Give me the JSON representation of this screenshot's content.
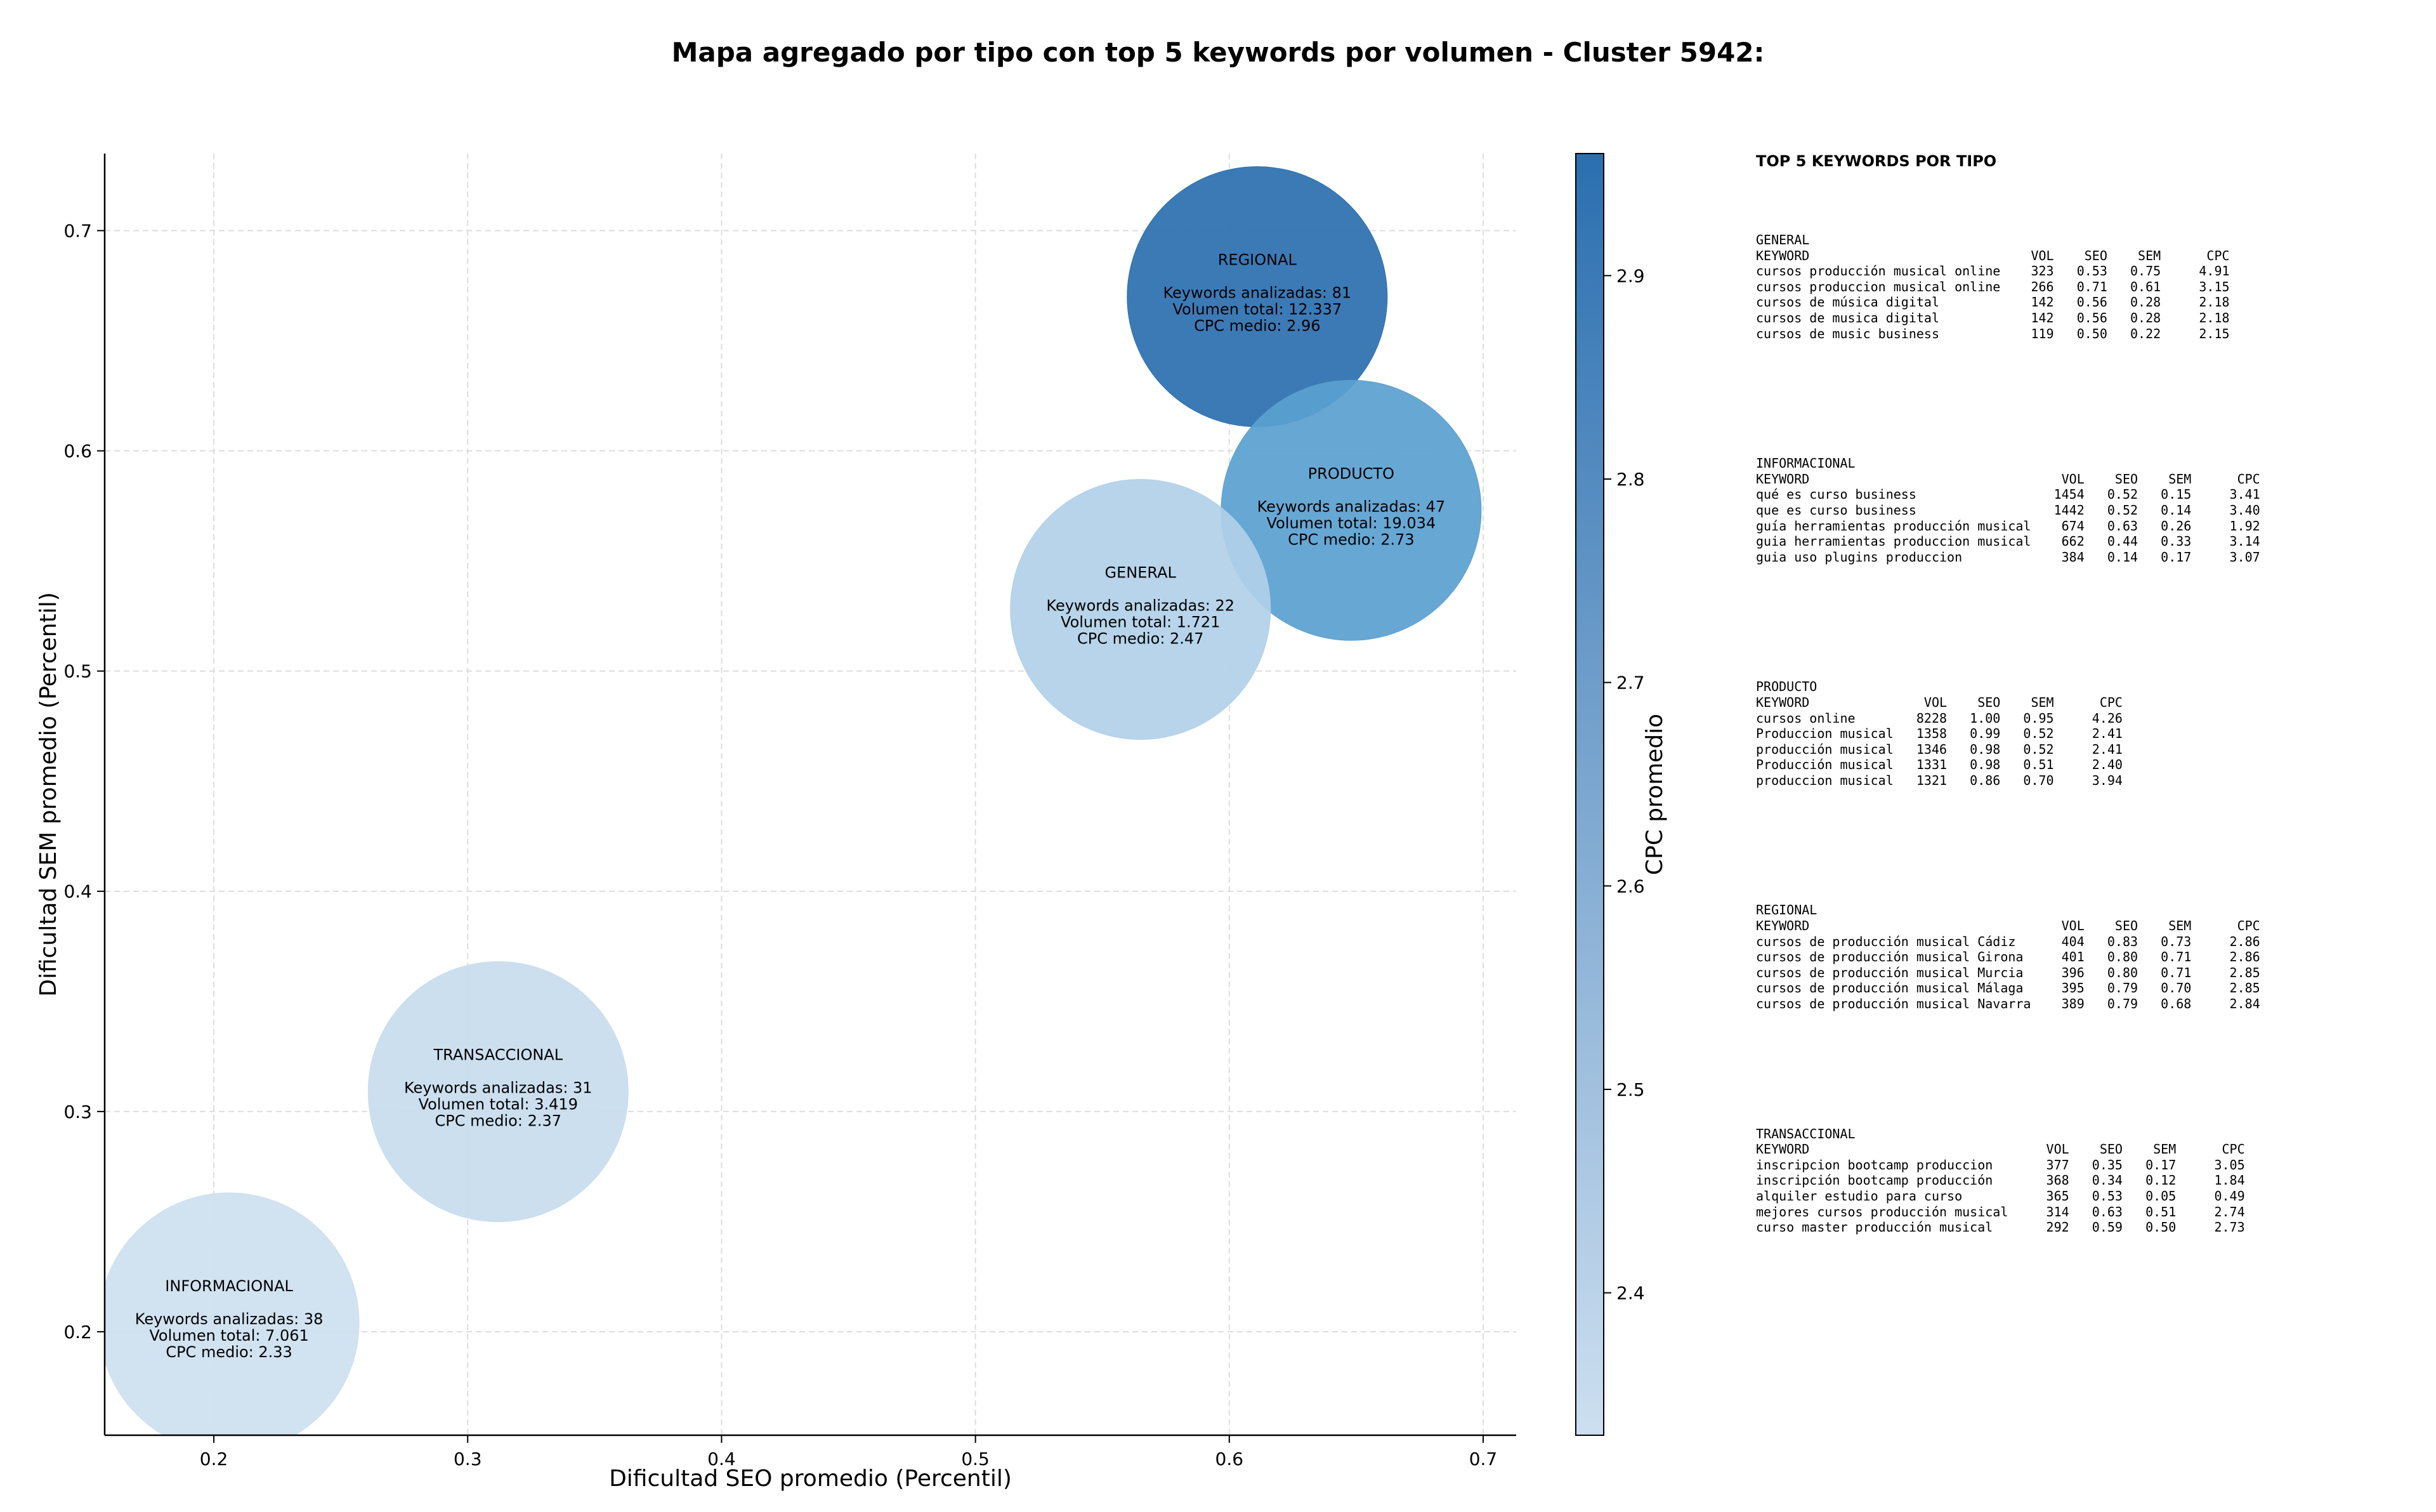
{
  "chart_data": {
    "type": "scatter",
    "title": "Mapa agregado por tipo con top 5 keywords por volumen - Cluster 5942:",
    "xlabel": "Dificultad SEO promedio (Percentil)",
    "ylabel": "Dificultad SEM promedio (Percentil)",
    "xlim": [
      0.157,
      0.713
    ],
    "ylim": [
      0.153,
      0.735
    ],
    "xticks": [
      "0.2",
      "0.3",
      "0.4",
      "0.5",
      "0.6",
      "0.7"
    ],
    "yticks": [
      "0.2",
      "0.3",
      "0.4",
      "0.5",
      "0.6",
      "0.7"
    ],
    "grid": true,
    "colorbar": {
      "label": "CPC promedio",
      "min": 2.33,
      "max": 2.96,
      "ticks": [
        "2.4",
        "2.5",
        "2.6",
        "2.7",
        "2.8",
        "2.9"
      ],
      "color_low": "#cddff0",
      "color_high": "#2b6fb0"
    },
    "points": [
      {
        "label": "REGIONAL",
        "x": 0.611,
        "y": 0.67,
        "keywords_line": "Keywords analizadas: 81",
        "volume_line": "Volumen total: 12.337",
        "cpc_line": "CPC medio: 2.96",
        "cpc": 2.96,
        "color": "#2b6fb0"
      },
      {
        "label": "PRODUCTO",
        "x": 0.648,
        "y": 0.573,
        "keywords_line": "Keywords analizadas: 47",
        "volume_line": "Volumen total: 19.034",
        "cpc_line": "CPC medio: 2.73",
        "cpc": 2.73,
        "color": "#5a9fd0"
      },
      {
        "label": "GENERAL",
        "x": 0.565,
        "y": 0.528,
        "keywords_line": "Keywords analizadas: 22",
        "volume_line": "Volumen total: 1.721",
        "cpc_line": "CPC medio: 2.47",
        "cpc": 2.47,
        "color": "#b1d0e8"
      },
      {
        "label": "TRANSACCIONAL",
        "x": 0.312,
        "y": 0.309,
        "keywords_line": "Keywords analizadas: 31",
        "volume_line": "Volumen total: 3.419",
        "cpc_line": "CPC medio: 2.37",
        "cpc": 2.37,
        "color": "#c8dcee"
      },
      {
        "label": "INFORMACIONAL",
        "x": 0.206,
        "y": 0.204,
        "keywords_line": "Keywords analizadas: 38",
        "volume_line": "Volumen total: 7.061",
        "cpc_line": "CPC medio: 2.33",
        "cpc": 2.33,
        "color": "#cddff0"
      }
    ]
  },
  "tables": {
    "title": "TOP 5 KEYWORDS POR TIPO",
    "blocks": [
      {
        "name": "GENERAL",
        "header": "KEYWORD                             VOL    SEO    SEM      CPC",
        "rows": [
          "cursos producción musical online    323   0.53   0.75     4.91",
          "cursos produccion musical online    266   0.71   0.61     3.15",
          "cursos de música digital            142   0.56   0.28     2.18",
          "cursos de musica digital            142   0.56   0.28     2.18",
          "cursos de music business            119   0.50   0.22     2.15"
        ]
      },
      {
        "name": "INFORMACIONAL",
        "header": "KEYWORD                                 VOL    SEO    SEM      CPC",
        "rows": [
          "qué es curso business                  1454   0.52   0.15     3.41",
          "que es curso business                  1442   0.52   0.14     3.40",
          "guía herramientas producción musical    674   0.63   0.26     1.92",
          "guia herramientas produccion musical    662   0.44   0.33     3.14",
          "guia uso plugins produccion             384   0.14   0.17     3.07"
        ]
      },
      {
        "name": "PRODUCTO",
        "header": "KEYWORD               VOL    SEO    SEM      CPC",
        "rows": [
          "cursos online        8228   1.00   0.95     4.26",
          "Produccion musical   1358   0.99   0.52     2.41",
          "producción musical   1346   0.98   0.52     2.41",
          "Producción musical   1331   0.98   0.51     2.40",
          "produccion musical   1321   0.86   0.70     3.94"
        ]
      },
      {
        "name": "REGIONAL",
        "header": "KEYWORD                                 VOL    SEO    SEM      CPC",
        "rows": [
          "cursos de producción musical Cádiz      404   0.83   0.73     2.86",
          "cursos de producción musical Girona     401   0.80   0.71     2.86",
          "cursos de producción musical Murcia     396   0.80   0.71     2.85",
          "cursos de producción musical Málaga     395   0.79   0.70     2.85",
          "cursos de producción musical Navarra    389   0.79   0.68     2.84"
        ]
      },
      {
        "name": "TRANSACCIONAL",
        "header": "KEYWORD                               VOL    SEO    SEM      CPC",
        "rows": [
          "inscripcion bootcamp produccion       377   0.35   0.17     3.05",
          "inscripción bootcamp producción       368   0.34   0.12     1.84",
          "alquiler estudio para curso           365   0.53   0.05     0.49",
          "mejores cursos producción musical     314   0.63   0.51     2.74",
          "curso master producción musical       292   0.59   0.50     2.73"
        ]
      }
    ]
  }
}
